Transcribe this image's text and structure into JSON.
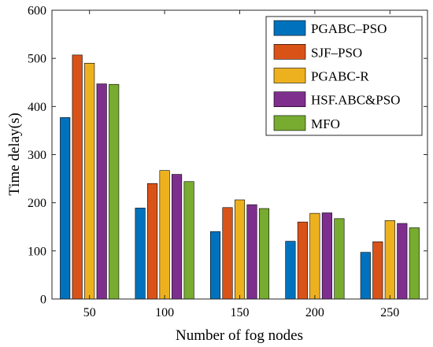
{
  "chart_data": {
    "type": "bar",
    "title": "",
    "xlabel": "Number of fog nodes",
    "ylabel": "Time delay(s)",
    "categories": [
      "50",
      "100",
      "150",
      "200",
      "250"
    ],
    "ylim": [
      0,
      600
    ],
    "yticks": [
      0,
      100,
      200,
      300,
      400,
      500,
      600
    ],
    "grid": false,
    "legend_position": "top-right",
    "series": [
      {
        "name": "PGABC–PSO",
        "color": "#0072BD",
        "values": [
          377,
          189,
          140,
          120,
          97
        ]
      },
      {
        "name": "SJF–PSO",
        "color": "#D95319",
        "values": [
          507,
          240,
          190,
          160,
          119
        ]
      },
      {
        "name": "PGABC-R",
        "color": "#EDB120",
        "values": [
          490,
          267,
          206,
          178,
          163
        ]
      },
      {
        "name": "HSF.ABC&PSO",
        "color": "#7E2F8E",
        "values": [
          447,
          259,
          196,
          179,
          157
        ]
      },
      {
        "name": "MFO",
        "color": "#77AC30",
        "values": [
          446,
          244,
          188,
          167,
          148
        ]
      }
    ]
  }
}
